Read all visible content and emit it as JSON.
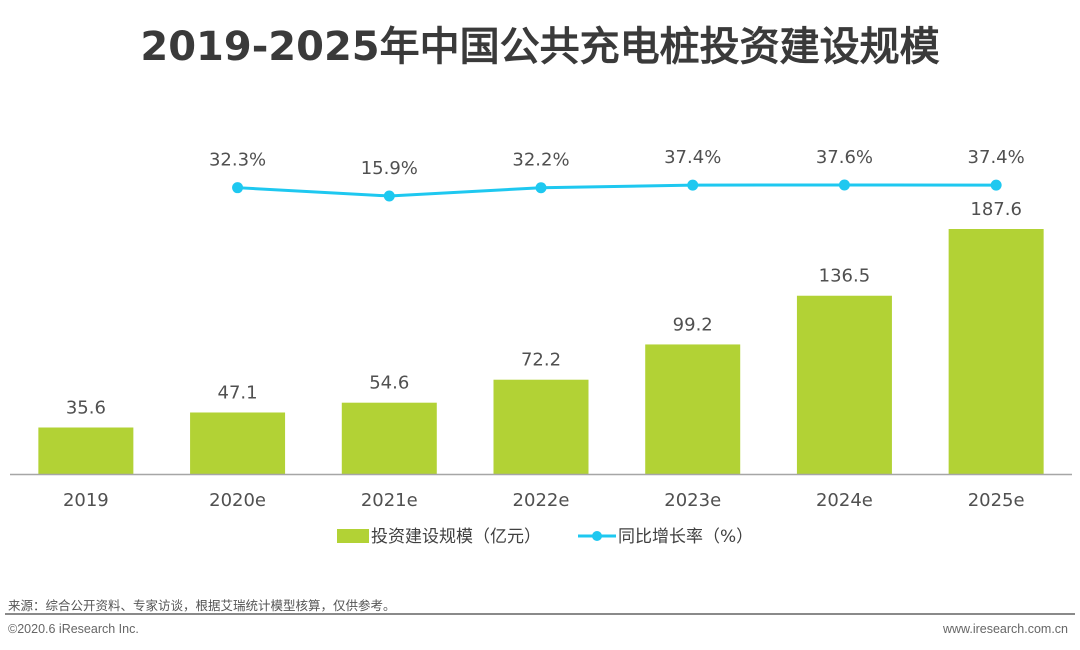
{
  "header": {
    "title": "2019-2025年中国公共充电桩投资建设规模"
  },
  "footer": {
    "source": "来源：综合公开资料、专家访谈，根据艾瑞统计模型核算，仅供参考。",
    "copyright": "©2020.6 iResearch Inc.",
    "website": "www.iresearch.com.cn"
  },
  "colors": {
    "bar": "#b2d235",
    "line": "#1ec8f0",
    "axis": "#a6a6a6"
  },
  "chart_data": {
    "type": "bar",
    "title": "2019-2025年中国公共充电桩投资建设规模",
    "xlabel": "",
    "ylabel": "",
    "categories": [
      "2019",
      "2020e",
      "2021e",
      "2022e",
      "2023e",
      "2024e",
      "2025e"
    ],
    "ylim": [
      0,
      200
    ],
    "grid": false,
    "legend_position": "bottom-center",
    "series": [
      {
        "name": "投资建设规模（亿元）",
        "type": "bar",
        "values": [
          35.6,
          47.1,
          54.6,
          72.2,
          99.2,
          136.5,
          187.6
        ],
        "labels": [
          "35.6",
          "47.1",
          "54.6",
          "72.2",
          "99.2",
          "136.5",
          "187.6"
        ]
      },
      {
        "name": "同比增长率（%）",
        "type": "line",
        "values": [
          null,
          32.3,
          15.9,
          32.2,
          37.4,
          37.6,
          37.4
        ],
        "labels": [
          "",
          "32.3%",
          "15.9%",
          "32.2%",
          "37.4%",
          "37.6%",
          "37.4%"
        ]
      }
    ]
  }
}
